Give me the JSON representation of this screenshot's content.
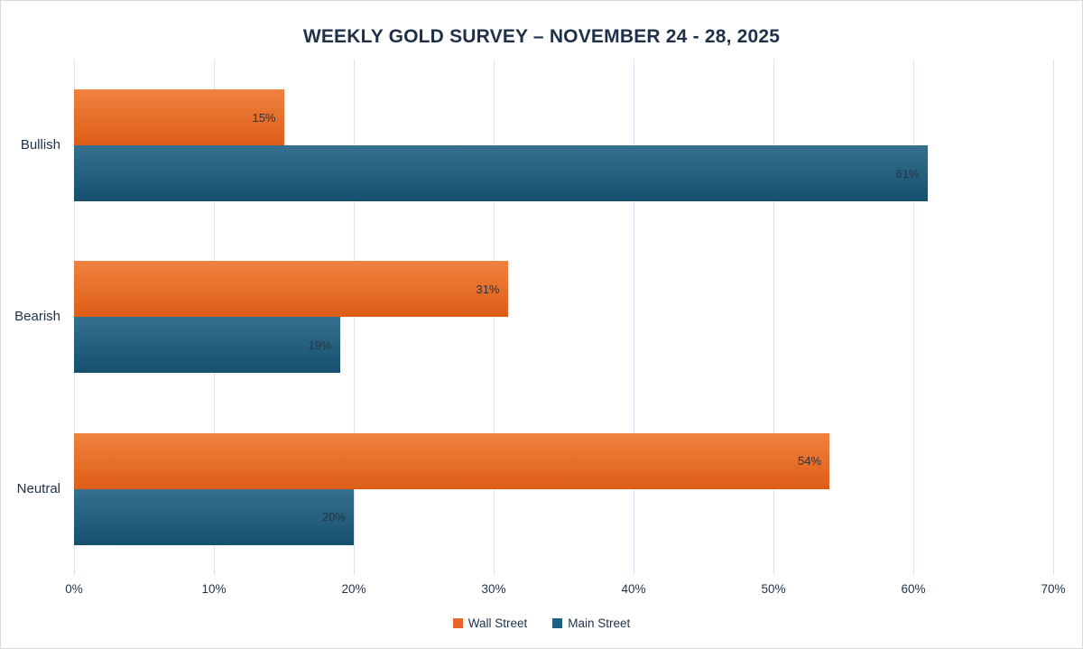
{
  "title": "WEEKLY GOLD SURVEY – NOVEMBER 24 - 28, 2025",
  "colors": {
    "title_text": "#1e3148",
    "gridline": "#d9e2f0",
    "value_label_text": "#273443",
    "wall_street_orange": "#e8642b",
    "main_street_blue": "#1f5f82"
  },
  "chart_data": {
    "type": "bar",
    "orientation": "horizontal",
    "title": "WEEKLY GOLD SURVEY – NOVEMBER 24 - 28, 2025",
    "categories": [
      "Bullish",
      "Bearish",
      "Neutral"
    ],
    "series": [
      {
        "name": "Wall Street",
        "values": [
          15,
          31,
          54
        ],
        "legend_color": "#e8642b",
        "gradient_top": "#f0823f",
        "gradient_bottom": "#dd5d17"
      },
      {
        "name": "Main Street",
        "values": [
          61,
          19,
          20
        ],
        "legend_color": "#1f5f82",
        "gradient_top": "#36708f",
        "gradient_bottom": "#15506e"
      }
    ],
    "x_ticks": [
      "0%",
      "10%",
      "20%",
      "30%",
      "40%",
      "50%",
      "60%",
      "70%"
    ],
    "xlim": [
      0,
      70
    ],
    "value_suffix": "%",
    "data_labels": "inside-end",
    "grid": true,
    "legend_position": "bottom"
  }
}
